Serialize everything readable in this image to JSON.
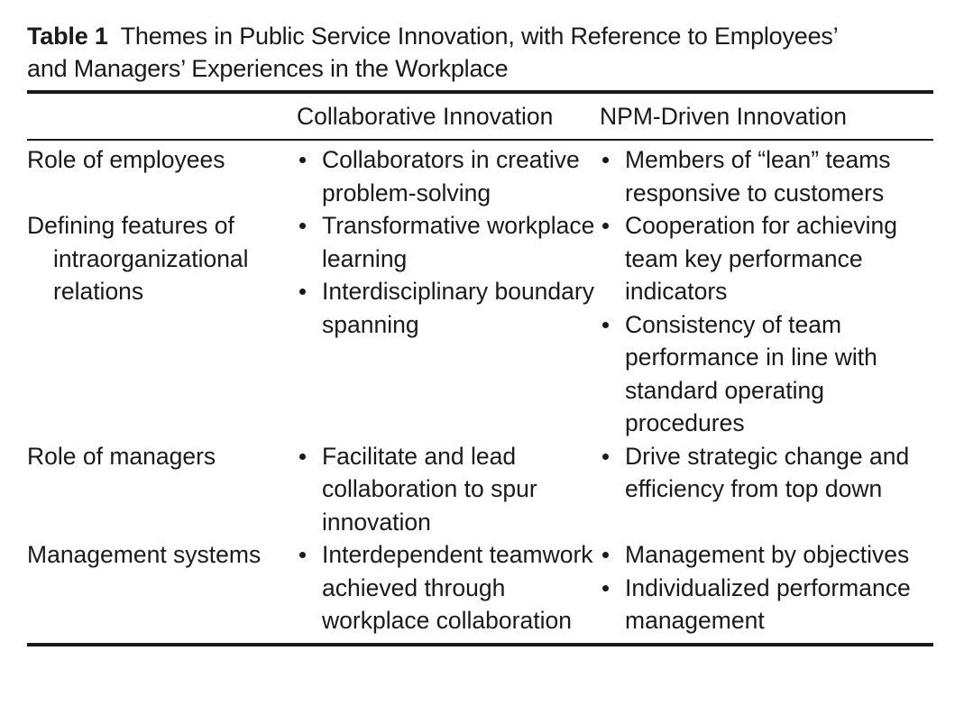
{
  "table": {
    "label": "Table 1",
    "title_line1": "Themes in Public Service Innovation, with Reference to Employees’",
    "title_line2": "and Managers’ Experiences in the Workplace",
    "columns": [
      "",
      "Collaborative Innovation",
      "NPM-Driven Innovation"
    ],
    "rows": [
      {
        "label": "Role of employees",
        "collaborative": [
          "Collaborators in creative problem-solving"
        ],
        "npm": [
          "Members of “lean” teams responsive to customers"
        ]
      },
      {
        "label": "Defining features of intraorganizational relations",
        "collaborative": [
          "Transformative workplace learning",
          "Interdisciplinary boundary spanning"
        ],
        "npm": [
          "Cooperation for achieving team key performance indicators",
          "Consistency of team performance in line with standard operating procedures"
        ]
      },
      {
        "label": "Role of managers",
        "collaborative": [
          "Facilitate and lead collaboration to spur innovation"
        ],
        "npm": [
          "Drive strategic change and efficiency from top down"
        ]
      },
      {
        "label": "Management systems",
        "collaborative": [
          "Interdependent teamwork achieved through workplace collaboration"
        ],
        "npm": [
          "Management by objectives",
          "Individualized performance management"
        ]
      }
    ]
  }
}
